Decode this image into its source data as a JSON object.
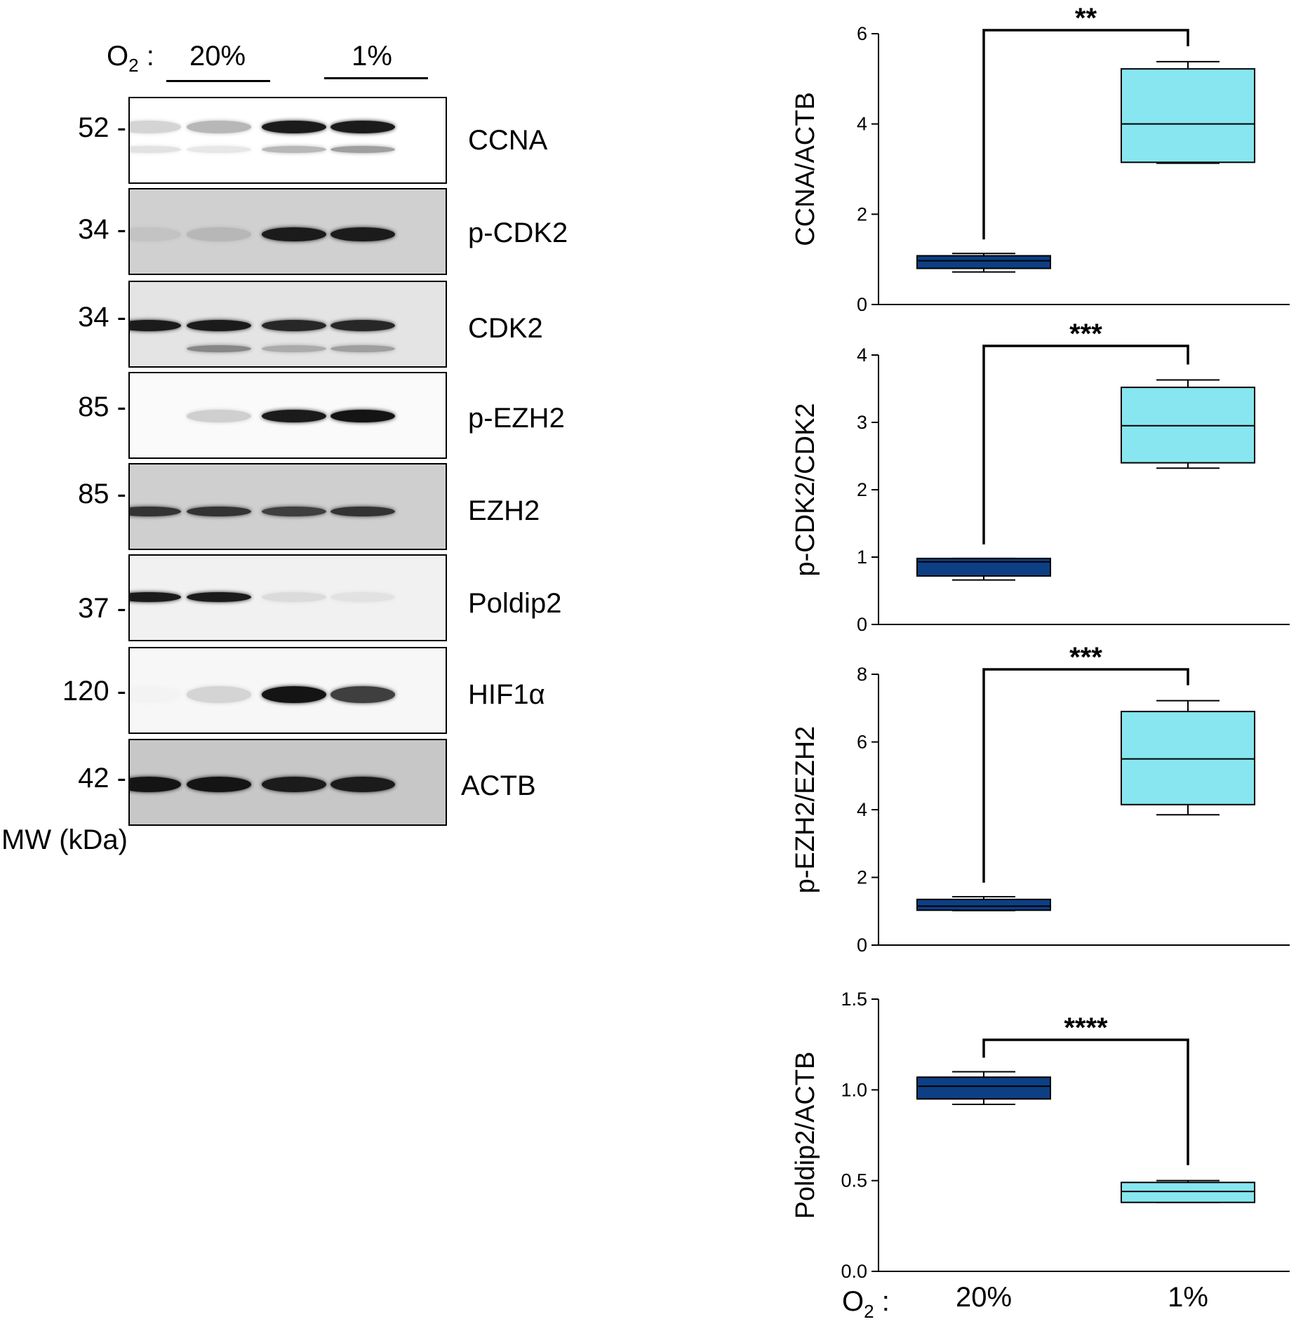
{
  "western_blot": {
    "o2_label": "O",
    "o2_sub": "2",
    "o2_colon": ":",
    "conditions": [
      "20%",
      "1%"
    ],
    "mw_unit_label": "MW (kDa)",
    "blots": [
      {
        "protein": "CCNA",
        "mw": "52 -",
        "background": "#ffffff"
      },
      {
        "protein": "p-CDK2",
        "mw": "34 -",
        "background": "#d0d0d0"
      },
      {
        "protein": "CDK2",
        "mw": "34 -",
        "background": "#e4e4e4"
      },
      {
        "protein": "p-EZH2",
        "mw": "85 -",
        "background": "#fafafa"
      },
      {
        "protein": "EZH2",
        "mw": "85 -",
        "background": "#cfcfcf"
      },
      {
        "protein": "Poldip2",
        "mw": "37 -",
        "background": "#f1f1f1"
      },
      {
        "protein": "HIF1α",
        "mw": "120 -",
        "background": "#f7f7f7"
      },
      {
        "protein": "ACTB",
        "mw": "42 -",
        "background": "#c7c7c7"
      }
    ]
  },
  "chart_data": [
    {
      "type": "boxplot",
      "ylabel": "CCNA/ACTB",
      "ylim": [
        0,
        6
      ],
      "yticks": [
        "0",
        "2",
        "4",
        "6"
      ],
      "ytick_values": [
        0,
        2,
        4,
        6
      ],
      "significance": "**",
      "groups": [
        {
          "category": "20%",
          "min": 0.72,
          "q1": 0.8,
          "median": 0.97,
          "q3": 1.08,
          "max": 1.13,
          "color": "#0d3f85"
        },
        {
          "category": "1%",
          "min": 3.13,
          "q1": 3.15,
          "median": 4.0,
          "q3": 5.22,
          "max": 5.38,
          "color": "#87e6ef"
        }
      ]
    },
    {
      "type": "boxplot",
      "ylabel": "p-CDK2/CDK2",
      "ylim": [
        0,
        4
      ],
      "yticks": [
        "0",
        "1",
        "2",
        "3",
        "4"
      ],
      "ytick_values": [
        0,
        1,
        2,
        3,
        4
      ],
      "significance": "***",
      "groups": [
        {
          "category": "20%",
          "min": 0.66,
          "q1": 0.72,
          "median": 0.93,
          "q3": 0.98,
          "max": 0.98,
          "color": "#0d3f85"
        },
        {
          "category": "1%",
          "min": 2.32,
          "q1": 2.4,
          "median": 2.95,
          "q3": 3.52,
          "max": 3.63,
          "color": "#87e6ef"
        }
      ]
    },
    {
      "type": "boxplot",
      "ylabel": "p-EZH2/EZH2",
      "ylim": [
        0,
        8
      ],
      "yticks": [
        "0",
        "2",
        "4",
        "6",
        "8"
      ],
      "ytick_values": [
        0,
        2,
        4,
        6,
        8
      ],
      "significance": "***",
      "groups": [
        {
          "category": "20%",
          "min": 1.02,
          "q1": 1.03,
          "median": 1.15,
          "q3": 1.35,
          "max": 1.43,
          "color": "#0d3f85"
        },
        {
          "category": "1%",
          "min": 3.85,
          "q1": 4.15,
          "median": 5.5,
          "q3": 6.9,
          "max": 7.22,
          "color": "#87e6ef"
        }
      ]
    },
    {
      "type": "boxplot",
      "ylabel": "Poldip2/ACTB",
      "ylim": [
        0,
        1.5
      ],
      "yticks": [
        "0.0",
        "0.5",
        "1.0",
        "1.5"
      ],
      "ytick_values": [
        0,
        0.5,
        1.0,
        1.5
      ],
      "significance": "****",
      "groups": [
        {
          "category": "20%",
          "min": 0.92,
          "q1": 0.95,
          "median": 1.02,
          "q3": 1.07,
          "max": 1.1,
          "color": "#0d3f85"
        },
        {
          "category": "1%",
          "min": 0.38,
          "q1": 0.38,
          "median": 0.44,
          "q3": 0.49,
          "max": 0.5,
          "color": "#87e6ef"
        }
      ]
    }
  ],
  "x_axis": {
    "o2_label": "O",
    "o2_sub": "2",
    "o2_colon": ":",
    "categories": [
      "20%",
      "1%"
    ]
  }
}
